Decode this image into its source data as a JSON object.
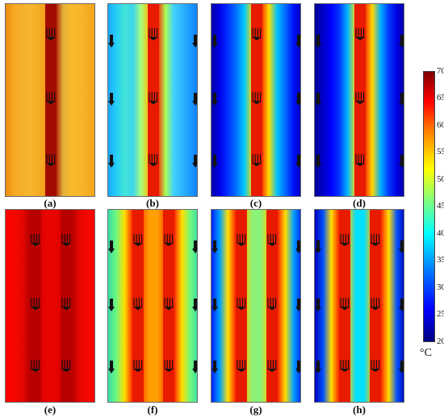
{
  "panels": [
    {
      "label": "(a)",
      "channels": 1,
      "gradient": [
        "#e98b10",
        "#f6a922",
        "#f5b02c",
        "#f8b52e",
        "#f5ad26",
        "#f59c1a",
        "#a80d00",
        "#e2b23a",
        "#f9bb2c",
        "#f9b52a",
        "#f5ac24",
        "#f2a31b"
      ]
    },
    {
      "label": "(b)",
      "channels": 1,
      "gradient": [
        "#1ca8ff",
        "#25cff8",
        "#42e3d6",
        "#3bd5ee",
        "#a8ff7e",
        "#ffb800",
        "#ff2000",
        "#a7ff57",
        "#3fd1ff",
        "#2eb4ff",
        "#1a9bff",
        "#0e7bff"
      ]
    },
    {
      "label": "(c)",
      "channels": 1,
      "gradient": [
        "#0000a8",
        "#0000e8",
        "#0030ff",
        "#0070ff",
        "#00c8ff",
        "#ffd800",
        "#ff1800",
        "#ffe000",
        "#00c0ff",
        "#0068ff",
        "#0010f8",
        "#0000b4"
      ]
    },
    {
      "label": "(d)",
      "channels": 1,
      "gradient": [
        "#000098",
        "#0000c8",
        "#0000ff",
        "#0038ff",
        "#00b8ff",
        "#ffe000",
        "#ff1800",
        "#ffd800",
        "#00b0ff",
        "#0038ff",
        "#0000e0",
        "#00009c"
      ]
    },
    {
      "label": "(e)",
      "channels": 2,
      "gradient": [
        "#ff0000",
        "#f50800",
        "#e40600",
        "#b50000",
        "#d80000",
        "#e80400",
        "#e80400",
        "#d80000",
        "#b50000",
        "#e40600",
        "#f50800",
        "#ff0000"
      ]
    },
    {
      "label": "(f)",
      "channels": 2,
      "gradient": [
        "#37dcaa",
        "#70f87c",
        "#ffe000",
        "#ff2000",
        "#ff5000",
        "#ffa000",
        "#ffa000",
        "#ff5000",
        "#ff2000",
        "#ffe000",
        "#70f87c",
        "#37dcaa"
      ]
    },
    {
      "label": "(g)",
      "channels": 2,
      "gradient": [
        "#0020ff",
        "#00a0ff",
        "#ffe000",
        "#ff1a00",
        "#f5d000",
        "#8cf27a",
        "#8cf27a",
        "#f5d000",
        "#ff1a00",
        "#ffe000",
        "#00a0ff",
        "#0020ff"
      ]
    },
    {
      "label": "(h)",
      "channels": 2,
      "gradient": [
        "#0000b8",
        "#0050ff",
        "#ffe000",
        "#ff1a00",
        "#ffc400",
        "#00e0ff",
        "#00e0ff",
        "#ffc400",
        "#ff1a00",
        "#ffe000",
        "#0050ff",
        "#0000b8"
      ]
    }
  ],
  "colorbar": {
    "ticks": [
      "70",
      "65",
      "60",
      "55",
      "50",
      "45",
      "40",
      "35",
      "30",
      "25",
      "20"
    ],
    "unit": "°C",
    "min": 20,
    "max": 70
  }
}
